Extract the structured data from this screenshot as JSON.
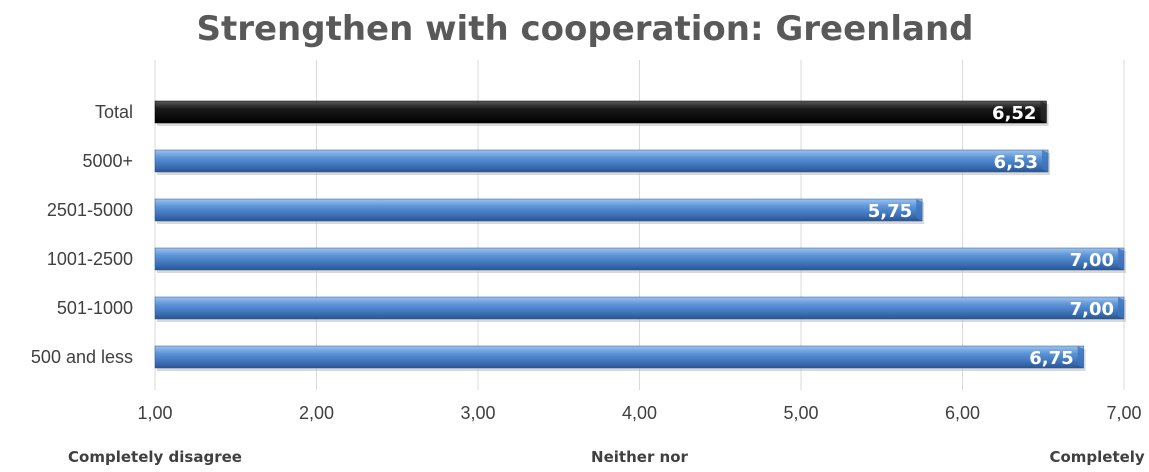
{
  "chart_data": {
    "type": "bar",
    "orientation": "horizontal",
    "title": "Strengthen with cooperation: Greenland",
    "categories": [
      "Total",
      "5000+",
      "2501-5000",
      "1001-2500",
      "501-1000",
      "500 and less"
    ],
    "values": [
      6.52,
      6.53,
      5.75,
      7.0,
      7.0,
      6.75
    ],
    "data_labels": [
      "6,52",
      "6,53",
      "5,75",
      "7,00",
      "7,00",
      "6,75"
    ],
    "xlim": [
      1,
      7
    ],
    "x_ticks": [
      1,
      2,
      3,
      4,
      5,
      6,
      7
    ],
    "x_tick_labels": [
      "1,00",
      "2,00",
      "3,00",
      "4,00",
      "5,00",
      "6,00",
      "7,00"
    ],
    "scale_anchors": [
      {
        "value": 1,
        "label": "Completely disagree"
      },
      {
        "value": 4,
        "label": "Neither nor"
      },
      {
        "value": 7,
        "label": "Completely agree"
      }
    ],
    "grid": true,
    "legend": false,
    "colors": {
      "highlight_bar": "#000000",
      "bar": "#4f86c6",
      "gridline": "#d9d9d9"
    }
  }
}
